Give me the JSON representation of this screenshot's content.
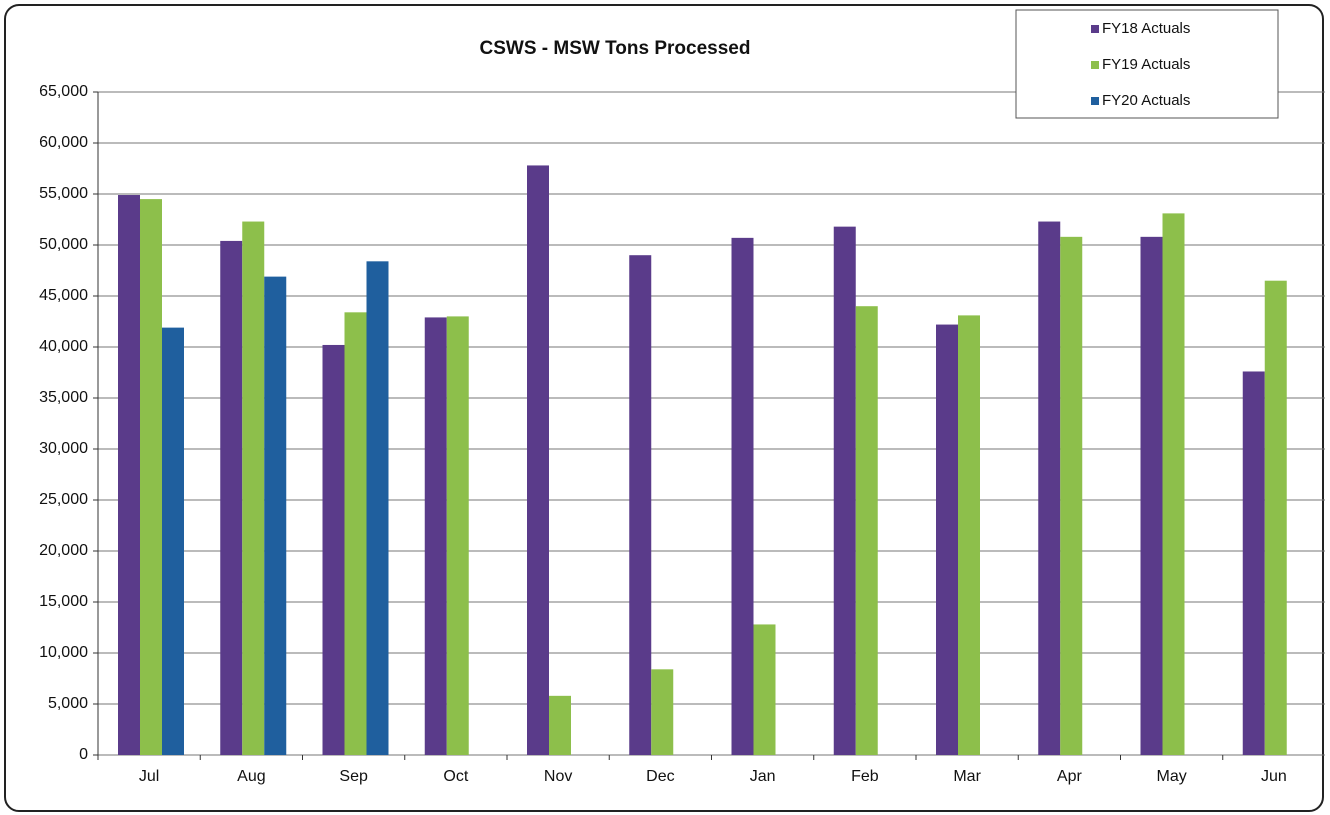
{
  "chart_data": {
    "type": "bar",
    "title": "CSWS - MSW Tons Processed",
    "categories": [
      "Jul",
      "Aug",
      "Sep",
      "Oct",
      "Nov",
      "Dec",
      "Jan",
      "Feb",
      "Mar",
      "Apr",
      "May",
      "Jun"
    ],
    "series": [
      {
        "name": "FY18 Actuals",
        "color": "#5a3b8a",
        "values": [
          54900,
          50400,
          40200,
          42900,
          57800,
          49000,
          50700,
          51800,
          42200,
          52300,
          50800,
          37600
        ]
      },
      {
        "name": "FY19 Actuals",
        "color": "#8dbf4b",
        "values": [
          54500,
          52300,
          43400,
          43000,
          5800,
          8400,
          12800,
          44000,
          43100,
          50800,
          53100,
          46500
        ]
      },
      {
        "name": "FY20 Actuals",
        "color": "#1f5f9e",
        "values": [
          41900,
          46900,
          48400,
          null,
          null,
          null,
          null,
          null,
          null,
          null,
          null,
          null
        ]
      }
    ],
    "ylim": [
      0,
      65000
    ],
    "yticks": [
      0,
      {
        "value": 5000,
        "label": "5,000"
      },
      {
        "value": 10000,
        "label": "10,000"
      },
      {
        "value": 15000,
        "label": "15,000"
      },
      {
        "value": 20000,
        "label": "20,000"
      },
      {
        "value": 25000,
        "label": "25,000"
      },
      {
        "value": 30000,
        "label": "30,000"
      },
      {
        "value": 35000,
        "label": "35,000"
      },
      {
        "value": 40000,
        "label": "40,000"
      },
      {
        "value": 45000,
        "label": "45,000"
      },
      {
        "value": 50000,
        "label": "50,000"
      },
      {
        "value": 55000,
        "label": "55,000"
      },
      {
        "value": 60000,
        "label": "60,000"
      },
      {
        "value": 65000,
        "label": "65,000"
      }
    ],
    "grid": true,
    "legend": "upper right"
  }
}
